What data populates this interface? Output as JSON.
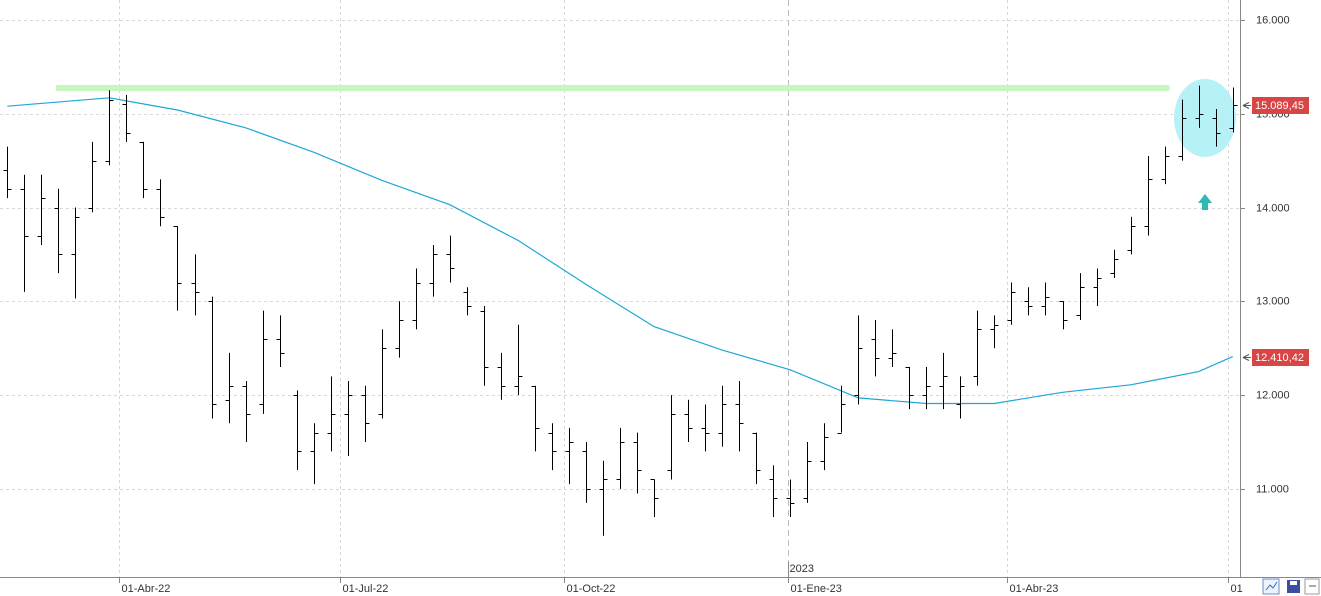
{
  "chart_data": {
    "type": "ohlc",
    "color": "#000000",
    "xlim": [
      "2022-02-11",
      "2023-07-06"
    ],
    "ylim": [
      10060,
      16213
    ],
    "x": [
      "2022-02-14",
      "2022-02-21",
      "2022-02-28",
      "2022-03-07",
      "2022-03-14",
      "2022-03-21",
      "2022-03-28",
      "2022-04-04",
      "2022-04-11",
      "2022-04-18",
      "2022-04-25",
      "2022-05-02",
      "2022-05-09",
      "2022-05-16",
      "2022-05-23",
      "2022-05-30",
      "2022-06-06",
      "2022-06-13",
      "2022-06-20",
      "2022-06-27",
      "2022-07-04",
      "2022-07-11",
      "2022-07-18",
      "2022-07-25",
      "2022-08-01",
      "2022-08-08",
      "2022-08-15",
      "2022-08-22",
      "2022-08-29",
      "2022-09-05",
      "2022-09-12",
      "2022-09-19",
      "2022-09-26",
      "2022-10-03",
      "2022-10-10",
      "2022-10-17",
      "2022-10-24",
      "2022-10-31",
      "2022-11-07",
      "2022-11-14",
      "2022-11-21",
      "2022-11-28",
      "2022-12-05",
      "2022-12-12",
      "2022-12-19",
      "2022-12-26",
      "2023-01-02",
      "2023-01-09",
      "2023-01-16",
      "2023-01-23",
      "2023-01-30",
      "2023-02-06",
      "2023-02-13",
      "2023-02-20",
      "2023-02-27",
      "2023-03-06",
      "2023-03-13",
      "2023-03-20",
      "2023-03-27",
      "2023-04-03",
      "2023-04-10",
      "2023-04-17",
      "2023-04-24",
      "2023-05-01",
      "2023-05-08",
      "2023-05-15",
      "2023-05-22",
      "2023-05-29",
      "2023-06-05",
      "2023-06-12",
      "2023-06-19",
      "2023-06-26",
      "2023-07-03"
    ],
    "open": [
      14400,
      14200,
      13700,
      14000,
      13500,
      14000,
      14500,
      15100,
      14700,
      14200,
      13800,
      13200,
      13000,
      11950,
      12100,
      11900,
      12600,
      12000,
      11400,
      11600,
      11800,
      12000,
      11800,
      12500,
      12800,
      13200,
      13500,
      13100,
      12900,
      12300,
      12100,
      12100,
      11600,
      11400,
      11400,
      11000,
      11100,
      11500,
      11100,
      11200,
      11800,
      11650,
      11600,
      11900,
      11600,
      11100,
      10900,
      10900,
      11300,
      11600,
      12000,
      12600,
      12400,
      12300,
      12000,
      12100,
      11900,
      12200,
      12700,
      12800,
      13000,
      12950,
      13000,
      12850,
      13150,
      13300,
      13550,
      13800,
      14300,
      14550,
      14950,
      14950,
      14850
    ],
    "high": [
      14650,
      14350,
      14350,
      14200,
      14000,
      14700,
      15250,
      15200,
      14700,
      14300,
      13800,
      13500,
      13050,
      12450,
      12150,
      12900,
      12850,
      12050,
      11700,
      12200,
      12150,
      12100,
      12700,
      13000,
      13350,
      13600,
      13700,
      13150,
      12950,
      12450,
      12750,
      12100,
      11700,
      11650,
      11500,
      11300,
      11650,
      11600,
      11100,
      12000,
      11950,
      11900,
      12100,
      12150,
      11600,
      11250,
      11100,
      11500,
      11700,
      12100,
      12850,
      12800,
      12700,
      12300,
      12300,
      12450,
      12200,
      12900,
      12850,
      13200,
      13150,
      13200,
      13000,
      13300,
      13350,
      13550,
      13900,
      14550,
      14650,
      15150,
      15300,
      15050,
      15280
    ],
    "low": [
      14100,
      13100,
      13600,
      13300,
      13030,
      13950,
      14450,
      14700,
      14100,
      13800,
      12900,
      12850,
      11750,
      11700,
      11500,
      11800,
      12300,
      11200,
      11050,
      11400,
      11350,
      11500,
      11750,
      12400,
      12700,
      13050,
      13200,
      12850,
      12100,
      11950,
      12000,
      11400,
      11200,
      11050,
      10850,
      10500,
      11000,
      10950,
      10700,
      11100,
      11500,
      11400,
      11450,
      11400,
      11050,
      10700,
      10700,
      10850,
      11200,
      11600,
      11900,
      12200,
      12300,
      11850,
      11850,
      11850,
      11750,
      12100,
      12500,
      12750,
      12850,
      12850,
      12700,
      12800,
      12950,
      13250,
      13500,
      13700,
      14250,
      14500,
      14850,
      14650,
      14800
    ],
    "close": [
      14200,
      13700,
      14100,
      13500,
      13900,
      14500,
      15150,
      14800,
      14200,
      13900,
      13200,
      13100,
      11900,
      12100,
      11800,
      12600,
      12450,
      11400,
      11600,
      11800,
      12000,
      11700,
      12500,
      12800,
      13200,
      13500,
      13350,
      12950,
      12300,
      12100,
      12200,
      11650,
      11400,
      11500,
      11000,
      11100,
      11500,
      11200,
      10900,
      11800,
      11650,
      11600,
      11900,
      11700,
      11200,
      10900,
      10850,
      11300,
      11550,
      11900,
      12500,
      12400,
      12450,
      12000,
      12100,
      12200,
      12100,
      12700,
      12750,
      13100,
      12950,
      13050,
      12800,
      13150,
      13250,
      13450,
      13800,
      14300,
      14550,
      14950,
      15000,
      14800,
      15089.45
    ],
    "moving_average": {
      "color": "#1ea7d6",
      "x": [
        "2022-02-14",
        "2022-03-28",
        "2022-04-25",
        "2022-05-23",
        "2022-06-20",
        "2022-07-18",
        "2022-08-15",
        "2022-09-12",
        "2022-10-10",
        "2022-11-07",
        "2022-12-05",
        "2023-01-02",
        "2023-01-30",
        "2023-02-27",
        "2023-03-27",
        "2023-04-24",
        "2023-05-22",
        "2023-06-19",
        "2023-07-03"
      ],
      "values": [
        15080,
        15170,
        15040,
        14850,
        14590,
        14290,
        14030,
        13650,
        13180,
        12730,
        12480,
        12270,
        11970,
        11910,
        11910,
        12030,
        12110,
        12250,
        12410.42
      ]
    },
    "hline": {
      "value": 15275,
      "from": "2022-03-06",
      "to": "2023-06-07",
      "color": "#c8f5c0"
    },
    "price_labels": [
      {
        "value": 15089.45,
        "label": "15.089,45"
      },
      {
        "value": 12410.42,
        "label": "12.410,42"
      }
    ],
    "yticks": [
      {
        "value": 11000,
        "label": "11.000"
      },
      {
        "value": 12000,
        "label": "12.000"
      },
      {
        "value": 13000,
        "label": "13.000"
      },
      {
        "value": 14000,
        "label": "14.000"
      },
      {
        "value": 15000,
        "label": "15.000"
      },
      {
        "value": 16000,
        "label": "16.000"
      }
    ],
    "xticks": [
      {
        "value": "2022-04-01",
        "label": "01-Abr-22"
      },
      {
        "value": "2022-07-01",
        "label": "01-Jul-22"
      },
      {
        "value": "2022-10-01",
        "label": "01-Oct-22"
      },
      {
        "value": "2023-01-01",
        "label": "01-Ene-23"
      },
      {
        "value": "2023-04-01",
        "label": "01-Abr-23"
      },
      {
        "value": "2023-07-01",
        "label": "01"
      }
    ],
    "year_marker": {
      "value": "2023-01-01",
      "label": "2023"
    },
    "grid": true
  }
}
